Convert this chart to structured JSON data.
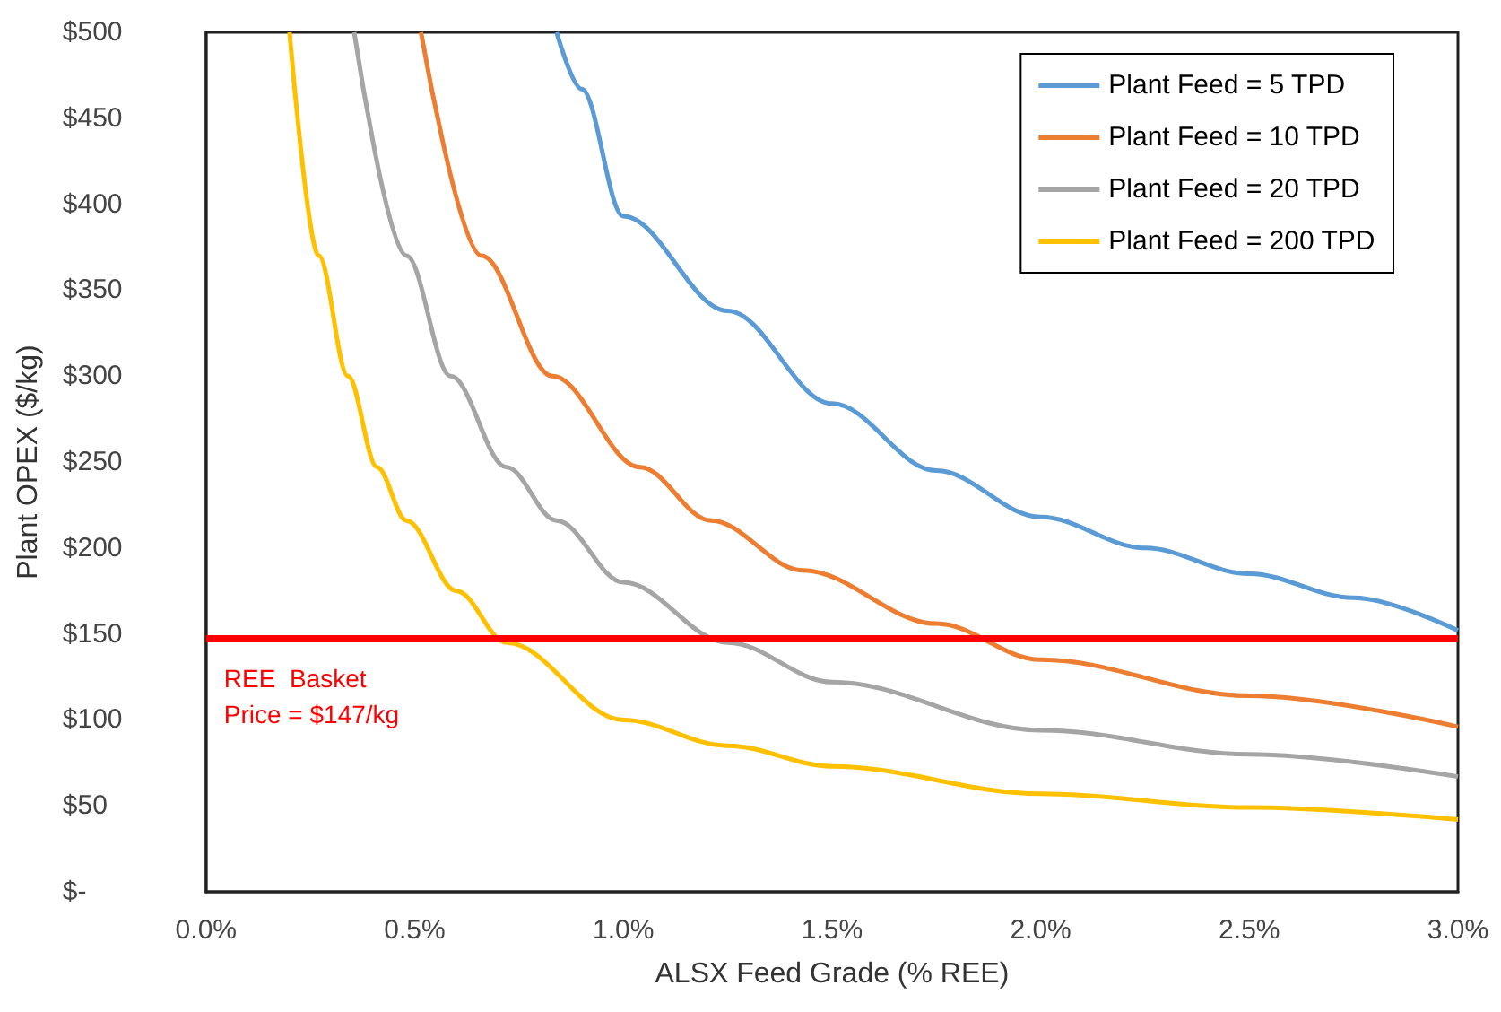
{
  "chart_data": {
    "type": "line",
    "xlabel": "ALSX Feed Grade (% REE)",
    "ylabel": "Plant OPEX ($/kg)",
    "xlim": [
      0,
      3
    ],
    "xticks": [
      {
        "value": 0,
        "label": "0.0%"
      },
      {
        "value": 0.5,
        "label": "0.5%"
      },
      {
        "value": 1,
        "label": "1.0%"
      },
      {
        "value": 1.5,
        "label": "1.5%"
      },
      {
        "value": 2,
        "label": "2.0%"
      },
      {
        "value": 2.5,
        "label": "2.5%"
      },
      {
        "value": 3,
        "label": "3.0%"
      }
    ],
    "ylim": [
      0,
      500
    ],
    "yticks": [
      {
        "value": 0,
        "label": "$-"
      },
      {
        "value": 50,
        "label": "$50"
      },
      {
        "value": 100,
        "label": "$100"
      },
      {
        "value": 150,
        "label": "$150"
      },
      {
        "value": 200,
        "label": "$200"
      },
      {
        "value": 250,
        "label": "$250"
      },
      {
        "value": 300,
        "label": "$300"
      },
      {
        "value": 350,
        "label": "$350"
      },
      {
        "value": 400,
        "label": "$400"
      },
      {
        "value": 450,
        "label": "$450"
      },
      {
        "value": 500,
        "label": "$500"
      }
    ],
    "grid": false,
    "legend": "top right",
    "marker": "none",
    "line_style": "solid",
    "series": [
      {
        "name": "Plant Feed = 5 TPD",
        "color": "#5b9bd5",
        "x": [
          0.84,
          0.9,
          1.0,
          1.25,
          1.5,
          1.75,
          2.0,
          2.25,
          2.5,
          2.75,
          3.0
        ],
        "values": [
          500,
          467,
          393,
          338,
          284,
          245,
          218,
          200,
          185,
          171,
          152
        ]
      },
      {
        "name": "Plant Feed = 10 TPD",
        "color": "#ed7d31",
        "x": [
          0.515,
          0.66,
          0.83,
          1.04,
          1.21,
          1.43,
          1.75,
          2.0,
          2.5,
          3.0
        ],
        "values": [
          500,
          370,
          300,
          247,
          216,
          187,
          156,
          135,
          114,
          96
        ]
      },
      {
        "name": "Plant Feed = 20 TPD",
        "color": "#a5a5a5",
        "x": [
          0.355,
          0.48,
          0.586,
          0.72,
          0.84,
          1.0,
          1.25,
          1.5,
          2.0,
          2.5,
          3.0
        ],
        "values": [
          500,
          370,
          300,
          247,
          216,
          180,
          145,
          122,
          94,
          80,
          67
        ]
      },
      {
        "name": "Plant Feed = 200 TPD",
        "color": "#ffc000",
        "x": [
          0.2,
          0.27,
          0.34,
          0.41,
          0.48,
          0.6,
          0.72,
          1.0,
          1.25,
          1.5,
          2.0,
          2.5,
          3.0
        ],
        "values": [
          500,
          370,
          300,
          247,
          216,
          175,
          145,
          100,
          85,
          73,
          57,
          49,
          42
        ]
      }
    ],
    "ref_lines": [
      {
        "axis": "y",
        "value": 147,
        "label": "REE  Basket\nPrice = $147/kg",
        "color": "#ff0000"
      }
    ]
  }
}
